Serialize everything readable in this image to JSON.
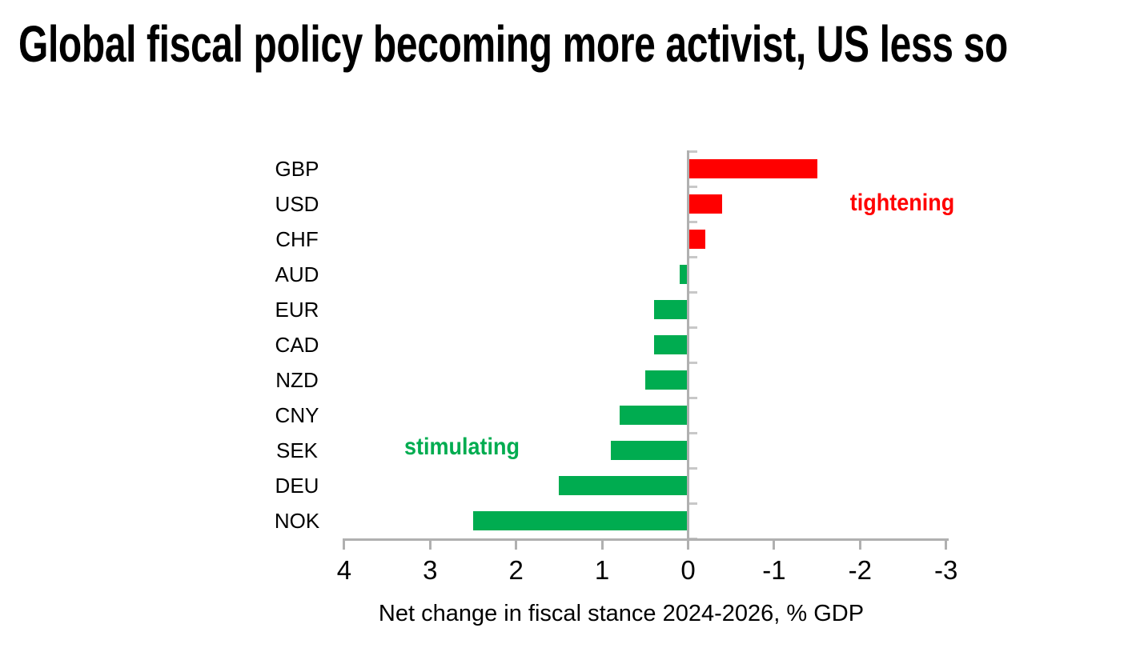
{
  "title": "Global fiscal policy becoming more activist, US less so",
  "chart_data": {
    "type": "bar",
    "orientation": "horizontal",
    "title": "Global fiscal policy becoming more activist, US less so",
    "xlabel": "Net change in fiscal stance 2024-2026, % GDP",
    "categories": [
      "GBP",
      "USD",
      "CHF",
      "AUD",
      "EUR",
      "CAD",
      "NZD",
      "CNY",
      "SEK",
      "DEU",
      "NOK"
    ],
    "values": [
      -1.5,
      -0.4,
      -0.2,
      0.1,
      0.4,
      0.4,
      0.5,
      0.8,
      0.9,
      1.5,
      2.5
    ],
    "x_ticks": [
      4,
      3,
      2,
      1,
      0,
      -1,
      -2,
      -3
    ],
    "xlim": [
      4,
      -3
    ],
    "x_axis_reversed": true,
    "grid": false,
    "legend": "none",
    "bar_colors_by_sign": {
      "positive": "#00AC50",
      "negative": "#FF0000"
    },
    "annotations": [
      {
        "text": "tightening",
        "color": "#FF0000"
      },
      {
        "text": "stimulating",
        "color": "#00AC50"
      }
    ],
    "axis_color": "#B0B0B0",
    "text_color": "#000000"
  }
}
